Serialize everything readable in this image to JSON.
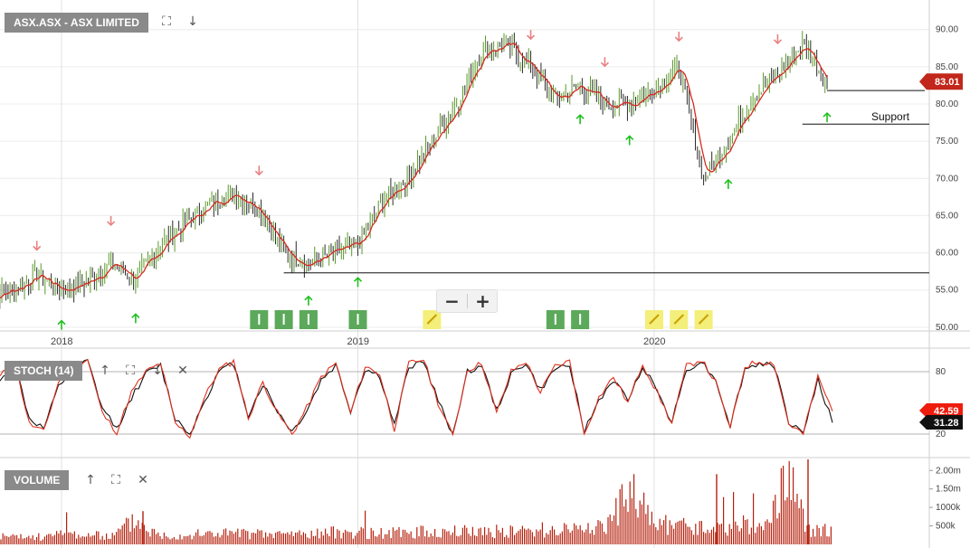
{
  "panels": {
    "price": {
      "label": "ASX.ASX - ASX LIMITED",
      "last": "83.01",
      "support_label": "Support"
    },
    "stoch": {
      "label": "STOCH (14)",
      "k_last": "42.59",
      "d_last": "31.28"
    },
    "volume": {
      "label": "VOLUME"
    }
  },
  "toolbar": {
    "plus": "+",
    "minus": "−"
  },
  "colors": {
    "price_line": "#d62b1f",
    "up_arrow": "#1ec01e",
    "down_arrow": "#e88080",
    "volume": "#b5200d",
    "last_tag": "#c1271a",
    "stoch_k_tag": "#ee1c0d",
    "stoch_d_tag": "#111111"
  },
  "chart_data": [
    {
      "type": "line",
      "title": "ASX.ASX - ASX LIMITED",
      "x_ticks": [
        "2018",
        "2019",
        "2020"
      ],
      "y_ticks": [
        "50.00",
        "55.00",
        "60.00",
        "65.00",
        "70.00",
        "75.00",
        "80.00",
        "85.00",
        "90.00"
      ],
      "ylim": [
        49.5,
        93
      ],
      "series": [
        {
          "x": [
            "2017-10",
            "2017-11",
            "2017-12",
            "2018-01",
            "2018-02",
            "2018-03",
            "2018-04",
            "2018-05",
            "2018-06",
            "2018-07",
            "2018-08",
            "2018-09",
            "2018-10",
            "2018-11",
            "2018-12",
            "2019-01",
            "2019-02",
            "2019-03",
            "2019-04",
            "2019-05",
            "2019-06",
            "2019-07",
            "2019-08",
            "2019-09",
            "2019-10",
            "2019-11",
            "2019-12",
            "2020-01",
            "2020-02",
            "2020-03",
            "2020-04",
            "2020-05",
            "2020-06",
            "2020-07",
            "2020-08"
          ],
          "values": [
            54,
            55,
            57,
            55,
            56,
            58.5,
            56.5,
            61,
            64,
            66.5,
            68,
            66,
            60,
            58.5,
            60,
            61,
            67,
            70,
            75,
            80,
            87,
            88,
            85,
            80.5,
            82.5,
            80,
            80,
            82,
            85,
            70,
            75,
            81,
            84,
            88,
            83
          ]
        }
      ],
      "support_levels": [
        57.3,
        77.3,
        81.8
      ],
      "up_arrows": [
        "2018-01",
        "2018-04",
        "2018-11",
        "2019-01",
        "2019-10",
        "2019-12",
        "2020-04",
        "2020-08"
      ],
      "down_arrows": [
        "2017-12",
        "2018-03",
        "2018-09",
        "2019-08",
        "2019-11",
        "2020-02",
        "2020-06"
      ],
      "signal_badges": [
        {
          "date": "2018-09",
          "kind": "green"
        },
        {
          "date": "2018-10",
          "kind": "green"
        },
        {
          "date": "2018-11",
          "kind": "green"
        },
        {
          "date": "2019-01",
          "kind": "green"
        },
        {
          "date": "2019-04",
          "kind": "pencil"
        },
        {
          "date": "2019-09",
          "kind": "green"
        },
        {
          "date": "2019-10",
          "kind": "green"
        },
        {
          "date": "2020-01",
          "kind": "pencil"
        },
        {
          "date": "2020-02",
          "kind": "pencil"
        },
        {
          "date": "2020-03",
          "kind": "pencil"
        }
      ],
      "last_value": 83.01,
      "grid": true
    },
    {
      "type": "line",
      "title": "STOCH (14)",
      "y_ticks": [
        "20",
        "80"
      ],
      "ylim": [
        0,
        100
      ],
      "series": [
        {
          "values": [
            75,
            90,
            30,
            22,
            70,
            85,
            92,
            40,
            22,
            60,
            80,
            88,
            30,
            18,
            55,
            82,
            90,
            35,
            70,
            40,
            20,
            45,
            75,
            88,
            40,
            85,
            78,
            25,
            88,
            92,
            50,
            18,
            82,
            88,
            40,
            80,
            90,
            60,
            85,
            90,
            20,
            55,
            75,
            50,
            88,
            60,
            30,
            85,
            92,
            70,
            25,
            85,
            90,
            88,
            30,
            20,
            75,
            42
          ]
        },
        {
          "values": [
            70,
            88,
            35,
            25,
            65,
            82,
            90,
            45,
            25,
            55,
            78,
            86,
            35,
            20,
            52,
            80,
            88,
            38,
            68,
            42,
            22,
            42,
            72,
            86,
            42,
            82,
            76,
            28,
            85,
            90,
            52,
            20,
            80,
            86,
            42,
            78,
            88,
            62,
            82,
            88,
            22,
            52,
            72,
            52,
            86,
            62,
            32,
            82,
            90,
            72,
            28,
            82,
            88,
            86,
            32,
            22,
            72,
            31
          ]
        }
      ],
      "last_k": 42.59,
      "last_d": 31.28
    },
    {
      "type": "bar",
      "title": "VOLUME",
      "y_ticks": [
        "500k",
        "1000k",
        "1.50m",
        "2.00m"
      ],
      "ylim": [
        0,
        2300000
      ],
      "values": [
        300000,
        250000,
        280000,
        400000,
        320000,
        300000,
        900000,
        350000,
        330000,
        380000,
        420000,
        380000,
        350000,
        400000,
        380000,
        450000,
        420000,
        400000,
        430000,
        460000,
        440000,
        500000,
        470000,
        480000,
        520000,
        550000,
        620000,
        680000,
        1900000,
        800000,
        650000,
        600000,
        560000,
        700000,
        550000,
        2300000,
        500000,
        520000
      ]
    }
  ]
}
